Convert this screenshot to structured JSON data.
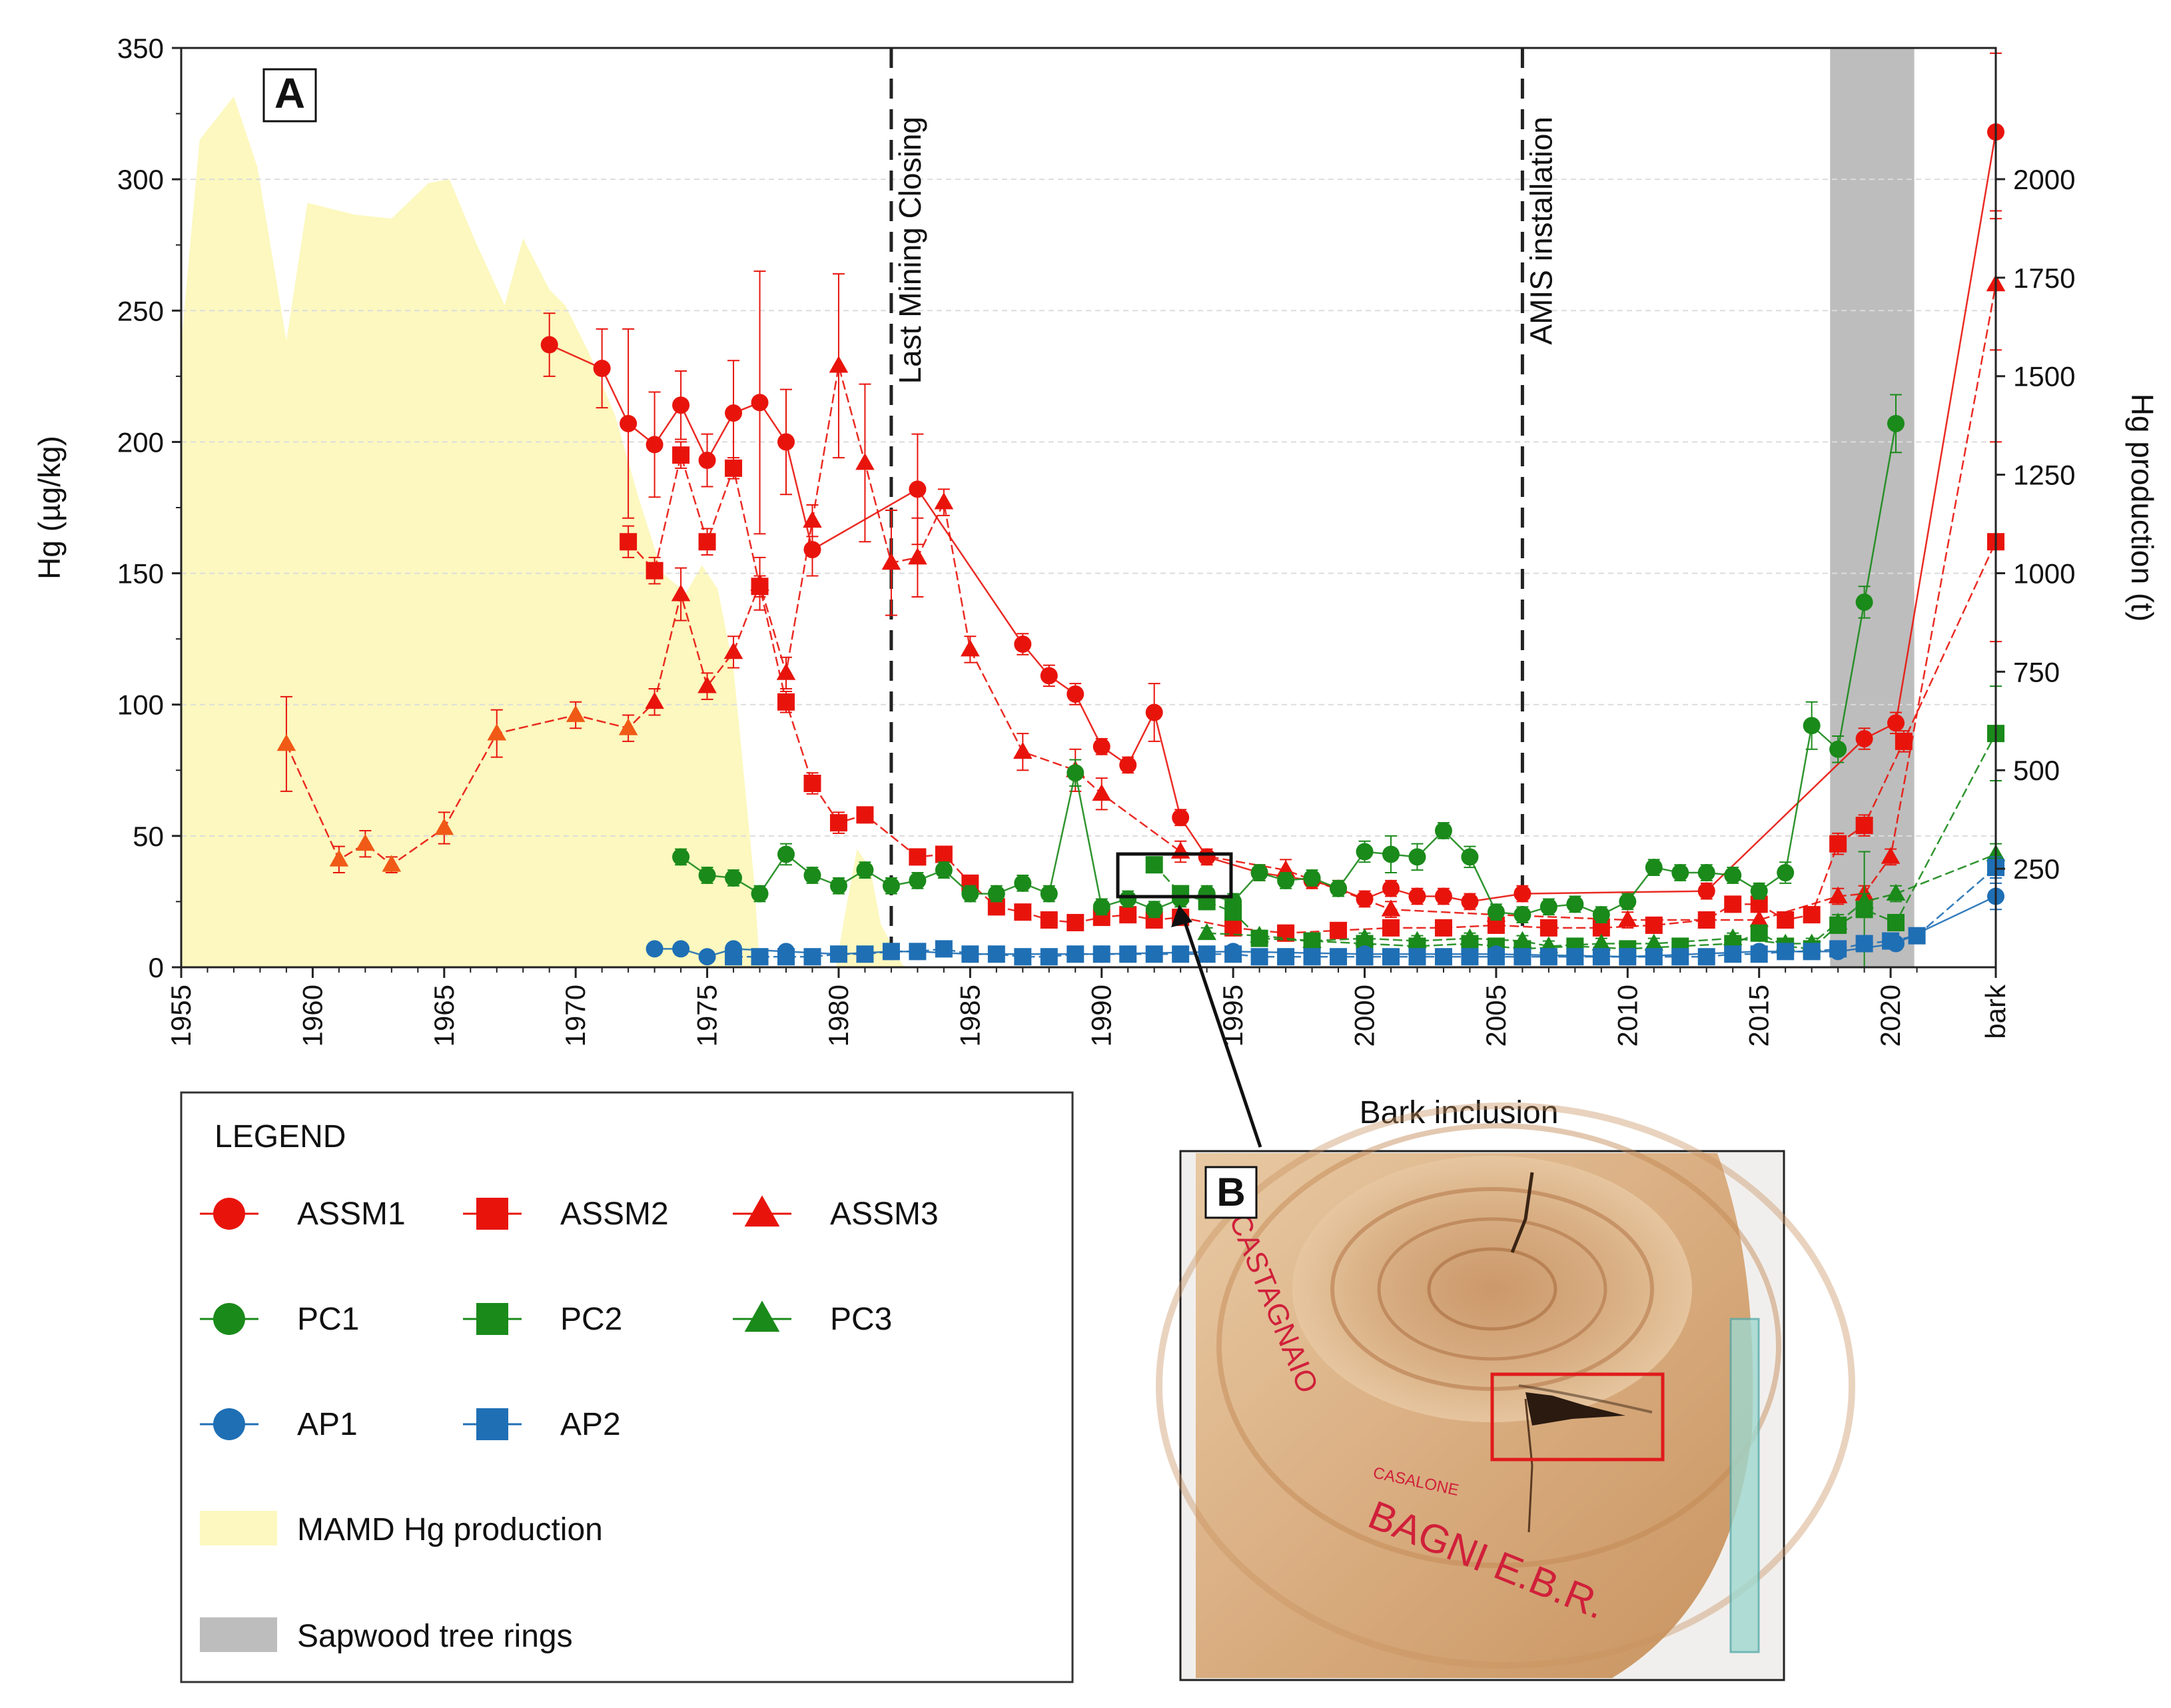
{
  "panel_a_label": "A",
  "panel_b_label": "B",
  "photo_caption": "Bark inclusion",
  "photo_writing": [
    "CASTAGNAIO",
    "CASALONE",
    "BAGNI E.B.R."
  ],
  "legend": {
    "title": "LEGEND",
    "items": [
      "ASSM1",
      "ASSM2",
      "ASSM3",
      "PC1",
      "PC2",
      "PC3",
      "AP1",
      "AP2",
      "MAMD Hg production",
      "Sapwood tree rings"
    ]
  },
  "colors": {
    "assm": "#e8140c",
    "assm3_early": "#f05a16",
    "pc": "#1a8a1a",
    "ap": "#1f6fb5",
    "production_fill": "#fcf8bf",
    "sapwood": "#bdbdbd",
    "inclusion_box": "#e01b1b"
  },
  "chart_data": {
    "type": "line",
    "xlabel": "",
    "ylabel": "Hg (µg/kg)",
    "y2label": "Hg production (t)",
    "xlim": [
      1955,
      2024
    ],
    "ylim": [
      0,
      350
    ],
    "y2lim": [
      0,
      2333
    ],
    "x_ticks": [
      "1955",
      "1960",
      "1965",
      "1970",
      "1975",
      "1980",
      "1985",
      "1990",
      "1995",
      "2000",
      "2005",
      "2010",
      "2015",
      "2020",
      "bark"
    ],
    "y_ticks": [
      0,
      50,
      100,
      150,
      200,
      250,
      300,
      350
    ],
    "y2_ticks": [
      250,
      500,
      750,
      1000,
      1250,
      1500,
      1750,
      2000
    ],
    "grid": "horizontal dashed",
    "annotations": [
      {
        "x": 1982,
        "text": "Last Mining Closing"
      },
      {
        "x": 2006,
        "text": "AMIS installation"
      }
    ],
    "shaded_region": {
      "label": "Sapwood tree rings",
      "x": [
        2017.7,
        2020.9
      ]
    },
    "production": {
      "name": "MAMD Hg production",
      "x": [
        1955,
        1955.7,
        1957,
        1957.9,
        1959,
        1959.8,
        1960.4,
        1961.6,
        1963,
        1964.4,
        1965.2,
        1966.2,
        1967.3,
        1968,
        1969,
        1969.6,
        1970.5,
        1971.5,
        1972.4,
        1973.3,
        1974.2,
        1974.8,
        1975.4,
        1976,
        1976.8,
        1977,
        1979.9,
        1980.2,
        1980.7,
        1981.2,
        1981.6,
        1982.3,
        1982.5
      ],
      "y": [
        1580,
        2100,
        2210,
        2030,
        1590,
        1940,
        1930,
        1910,
        1900,
        1990,
        2000,
        1840,
        1680,
        1850,
        1720,
        1680,
        1560,
        1400,
        1190,
        1000,
        950,
        1020,
        960,
        760,
        210,
        0,
        0,
        120,
        300,
        250,
        110,
        20,
        0
      ]
    },
    "series": [
      {
        "name": "ASSM1",
        "marker": "circle",
        "x": [
          1969,
          1971,
          1972,
          1973,
          1974,
          1975,
          1976,
          1977,
          1978,
          1979,
          1983,
          1987,
          1988,
          1989,
          1990,
          1991,
          1992,
          1993,
          1994,
          1996,
          1998,
          1999,
          2000,
          2001,
          2002,
          2003,
          2004,
          2006,
          2013,
          2019,
          2020.2,
          2024
        ],
        "y": [
          237,
          228,
          207,
          199,
          214,
          193,
          211,
          215,
          200,
          159,
          182,
          123,
          111,
          104,
          84,
          77,
          97,
          57,
          42,
          36,
          33,
          30,
          26,
          30,
          27,
          27,
          25,
          28,
          29,
          87,
          93,
          318
        ],
        "err": [
          12,
          15,
          36,
          20,
          13,
          10,
          20,
          50,
          20,
          10,
          21,
          4,
          4,
          4,
          3,
          3,
          11,
          3,
          3,
          3,
          3,
          3,
          3,
          3,
          3,
          3,
          3,
          3,
          3,
          4,
          4,
          30
        ]
      },
      {
        "name": "ASSM2",
        "marker": "square",
        "x": [
          1972,
          1973,
          1974,
          1975,
          1976,
          1977,
          1978,
          1979,
          1980,
          1981,
          1983,
          1984,
          1985,
          1986,
          1987,
          1988,
          1989,
          1990,
          1991,
          1992,
          1993,
          1995,
          1997,
          1999,
          2001,
          2003,
          2005,
          2007,
          2009,
          2011,
          2013,
          2014,
          2015,
          2016,
          2017,
          2018,
          2019,
          2020.5,
          2024
        ],
        "y": [
          162,
          151,
          195,
          162,
          190,
          145,
          101,
          70,
          55,
          58,
          42,
          43,
          32,
          23,
          21,
          18,
          17,
          19,
          20,
          18,
          19,
          15,
          13,
          14,
          15,
          15,
          16,
          15,
          15,
          16,
          18,
          24,
          24,
          18,
          20,
          47,
          54,
          86,
          162
        ],
        "err": [
          6,
          5,
          5,
          5,
          4,
          4,
          4,
          4,
          4,
          3,
          3,
          3,
          3,
          3,
          3,
          3,
          3,
          3,
          3,
          3,
          3,
          3,
          3,
          3,
          3,
          3,
          3,
          3,
          3,
          3,
          3,
          3,
          3,
          3,
          3,
          4,
          4,
          4,
          38
        ]
      },
      {
        "name": "ASSM3",
        "marker": "triangle",
        "x": [
          1959,
          1961,
          1962,
          1963,
          1965,
          1967,
          1970,
          1972,
          1973,
          1974,
          1975,
          1976,
          1977,
          1978,
          1979,
          1980,
          1981,
          1982,
          1983,
          1984,
          1985,
          1987,
          1989,
          1990,
          1993,
          1997,
          2001,
          2005,
          2010,
          2015,
          2018,
          2019,
          2020,
          2024
        ],
        "y": [
          85,
          41,
          47,
          39,
          53,
          89,
          96,
          91,
          101,
          142,
          107,
          120,
          146,
          112,
          170,
          229,
          192,
          154,
          156,
          177,
          121,
          82,
          75,
          66,
          44,
          37,
          22,
          20,
          18,
          18,
          27,
          28,
          42,
          260
        ],
        "err": [
          18,
          5,
          5,
          3,
          6,
          9,
          5,
          5,
          5,
          10,
          5,
          6,
          10,
          6,
          6,
          35,
          30,
          20,
          15,
          5,
          5,
          7,
          8,
          6,
          4,
          4,
          3,
          3,
          3,
          3,
          3,
          3,
          3,
          25
        ]
      },
      {
        "name": "PC1",
        "marker": "circle",
        "x": [
          1974,
          1975,
          1976,
          1977,
          1978,
          1979,
          1980,
          1981,
          1982,
          1983,
          1984,
          1985,
          1986,
          1987,
          1988,
          1989,
          1990,
          1991,
          1992,
          1993,
          1994,
          1995,
          1996,
          1997,
          1998,
          1999,
          2000,
          2001,
          2002,
          2003,
          2004,
          2005,
          2006,
          2007,
          2008,
          2009,
          2010,
          2011,
          2012,
          2013,
          2014,
          2015,
          2016,
          2017,
          2018,
          2019,
          2020.2
        ],
        "y": [
          42,
          35,
          34,
          28,
          43,
          35,
          31,
          37,
          31,
          33,
          37,
          28,
          28,
          32,
          28,
          74,
          23,
          26,
          22,
          26,
          28,
          25,
          36,
          33,
          34,
          30,
          44,
          43,
          42,
          52,
          42,
          21,
          20,
          23,
          24,
          20,
          25,
          38,
          36,
          36,
          35,
          29,
          36,
          92,
          83,
          139,
          207
        ],
        "err": [
          3,
          3,
          3,
          3,
          4,
          3,
          3,
          3,
          3,
          3,
          3,
          3,
          3,
          3,
          3,
          5,
          3,
          3,
          3,
          3,
          3,
          3,
          3,
          3,
          3,
          3,
          4,
          7,
          5,
          3,
          4,
          3,
          3,
          3,
          3,
          3,
          3,
          3,
          3,
          3,
          3,
          3,
          4,
          9,
          5,
          6,
          11
        ]
      },
      {
        "name": "PC2",
        "marker": "square",
        "x": [
          1992,
          1993,
          1994,
          1995,
          1996,
          1998,
          2000,
          2002,
          2004,
          2005,
          2006,
          2008,
          2010,
          2012,
          2014,
          2015,
          2016,
          2017,
          2018,
          2019,
          2020.2,
          2024
        ],
        "y": [
          39,
          28,
          25,
          21,
          11,
          10,
          9,
          8,
          9,
          8,
          7,
          8,
          7,
          8,
          9,
          13,
          8,
          7,
          16,
          22,
          17,
          89
        ],
        "err": [
          3,
          3,
          3,
          3,
          2,
          2,
          2,
          2,
          2,
          2,
          2,
          2,
          2,
          2,
          2,
          2,
          2,
          2,
          3,
          22,
          3,
          18
        ]
      },
      {
        "name": "PC3",
        "marker": "triangle",
        "x": [
          1994,
          1996,
          1998,
          2000,
          2002,
          2004,
          2006,
          2007,
          2009,
          2011,
          2014,
          2016,
          2017,
          2018,
          2019,
          2020.2,
          2024
        ],
        "y": [
          13,
          12,
          10,
          11,
          10,
          11,
          10,
          8,
          9,
          9,
          11,
          9,
          9,
          17,
          25,
          28,
          43
        ],
        "err": [
          2,
          2,
          2,
          2,
          2,
          2,
          2,
          2,
          2,
          2,
          2,
          2,
          2,
          3,
          3,
          3,
          4
        ]
      },
      {
        "name": "AP1",
        "marker": "circle",
        "x": [
          1973,
          1974,
          1975,
          1976,
          1978,
          1980,
          1982,
          1983,
          1985,
          1990,
          1995,
          2000,
          2005,
          2010,
          2015,
          2018,
          2020.2,
          2024
        ],
        "y": [
          7,
          7,
          4,
          7,
          6,
          5,
          6,
          6,
          5,
          5,
          6,
          5,
          5,
          4,
          6,
          6,
          9,
          27
        ],
        "err": [
          1,
          1,
          1,
          1,
          1,
          1,
          1,
          1,
          1,
          1,
          1,
          1,
          1,
          1,
          1,
          1,
          1,
          5
        ]
      },
      {
        "name": "AP2",
        "marker": "square",
        "x": [
          1976,
          1977,
          1978,
          1979,
          1980,
          1981,
          1982,
          1983,
          1984,
          1985,
          1986,
          1987,
          1988,
          1989,
          1990,
          1991,
          1992,
          1993,
          1994,
          1995,
          1996,
          1997,
          1998,
          1999,
          2000,
          2001,
          2002,
          2003,
          2004,
          2005,
          2006,
          2007,
          2008,
          2009,
          2010,
          2011,
          2012,
          2013,
          2014,
          2015,
          2016,
          2017,
          2018,
          2019,
          2020,
          2021,
          2024
        ],
        "y": [
          4,
          4,
          4,
          4,
          5,
          5,
          6,
          6,
          7,
          5,
          5,
          4,
          4,
          5,
          5,
          5,
          5,
          5,
          5,
          5,
          4,
          4,
          4,
          4,
          4,
          4,
          4,
          4,
          4,
          4,
          4,
          4,
          4,
          4,
          4,
          4,
          4,
          4,
          5,
          5,
          6,
          6,
          7,
          9,
          10,
          12,
          38
        ],
        "err": [
          1,
          1,
          1,
          1,
          1,
          1,
          1,
          1,
          1,
          1,
          1,
          1,
          1,
          1,
          1,
          1,
          1,
          1,
          1,
          1,
          1,
          1,
          1,
          1,
          1,
          1,
          1,
          1,
          1,
          1,
          1,
          1,
          1,
          1,
          1,
          1,
          1,
          1,
          1,
          1,
          1,
          1,
          1,
          1,
          1,
          1,
          4
        ]
      }
    ]
  }
}
